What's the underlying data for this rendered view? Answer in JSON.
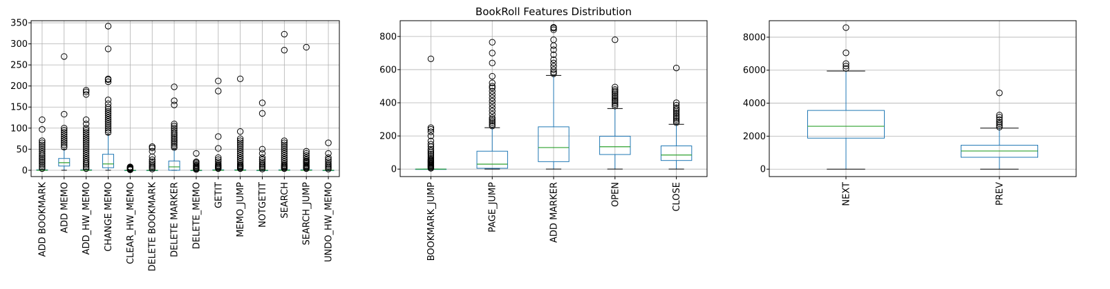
{
  "title": "BookRoll Features Distribution",
  "colors": {
    "box": "#1f77b4",
    "median": "#2ca02c",
    "outlier": "#000000",
    "grid": "#b0b0b0",
    "axes": "#000000"
  },
  "chart_data": [
    {
      "type": "box",
      "ylim": [
        -15,
        355
      ],
      "yticks": [
        0,
        50,
        100,
        150,
        200,
        250,
        300,
        350
      ],
      "grid": true,
      "categories": [
        "ADD BOOKMARK",
        "ADD MEMO",
        "ADD_HW_MEMO",
        "CHANGE MEMO",
        "CLEAR_HW_MEMO",
        "DELETE BOOKMARK",
        "DELETE MARKER",
        "DELETE_MEMO",
        "GETIT",
        "MEMO_JUMP",
        "NOTGETIT",
        "SEARCH",
        "SEARCH_JUMP",
        "UNDO_HW_MEMO"
      ],
      "boxes": [
        {
          "whislo": 0,
          "q1": 0,
          "med": 0,
          "q3": 1,
          "whishi": 2,
          "fliers": [
            4,
            8,
            12,
            16,
            20,
            24,
            28,
            32,
            36,
            40,
            45,
            50,
            55,
            60,
            65,
            70,
            97,
            120
          ]
        },
        {
          "whislo": 0,
          "q1": 10,
          "med": 18,
          "q3": 28,
          "whishi": 50,
          "fliers": [
            55,
            60,
            65,
            70,
            75,
            80,
            85,
            90,
            95,
            100,
            133,
            270
          ]
        },
        {
          "whislo": 0,
          "q1": 0,
          "med": 0,
          "q3": 1,
          "whishi": 2,
          "fliers": [
            4,
            8,
            12,
            16,
            20,
            25,
            30,
            35,
            40,
            45,
            50,
            55,
            60,
            65,
            70,
            75,
            80,
            85,
            90,
            95,
            100,
            110,
            120,
            180,
            186,
            190
          ]
        },
        {
          "whislo": 0,
          "q1": 6,
          "med": 15,
          "q3": 38,
          "whishi": 85,
          "fliers": [
            90,
            95,
            100,
            105,
            110,
            115,
            120,
            125,
            130,
            135,
            140,
            145,
            150,
            158,
            167,
            210,
            215,
            217,
            288,
            342
          ]
        },
        {
          "whislo": 0,
          "q1": 0,
          "med": 0,
          "q3": 0,
          "whishi": 0,
          "fliers": [
            1,
            2,
            3,
            4,
            5,
            6,
            7,
            8
          ]
        },
        {
          "whislo": 0,
          "q1": 0,
          "med": 0,
          "q3": 0,
          "whishi": 1,
          "fliers": [
            3,
            6,
            9,
            12,
            16,
            20,
            25,
            32,
            45,
            53,
            56
          ]
        },
        {
          "whislo": 0,
          "q1": 0,
          "med": 8,
          "q3": 22,
          "whishi": 50,
          "fliers": [
            54,
            58,
            62,
            66,
            70,
            74,
            78,
            82,
            86,
            90,
            95,
            100,
            105,
            110,
            155,
            165,
            198
          ]
        },
        {
          "whislo": 0,
          "q1": 0,
          "med": 0,
          "q3": 0,
          "whishi": 1,
          "fliers": [
            2,
            4,
            6,
            8,
            10,
            12,
            15,
            18,
            20,
            40
          ]
        },
        {
          "whislo": 0,
          "q1": 0,
          "med": 0,
          "q3": 1,
          "whishi": 2,
          "fliers": [
            4,
            6,
            8,
            10,
            12,
            15,
            20,
            25,
            30,
            52,
            80,
            188,
            212
          ]
        },
        {
          "whislo": 0,
          "q1": 0,
          "med": 0,
          "q3": 1,
          "whishi": 2,
          "fliers": [
            4,
            6,
            8,
            10,
            12,
            15,
            20,
            25,
            30,
            35,
            40,
            45,
            50,
            55,
            60,
            65,
            70,
            75,
            92,
            217
          ]
        },
        {
          "whislo": 0,
          "q1": 0,
          "med": 0,
          "q3": 0,
          "whishi": 1,
          "fliers": [
            3,
            6,
            9,
            12,
            15,
            20,
            25,
            30,
            40,
            50,
            135,
            160
          ]
        },
        {
          "whislo": 0,
          "q1": 0,
          "med": 0,
          "q3": 1,
          "whishi": 2,
          "fliers": [
            4,
            6,
            8,
            10,
            12,
            15,
            20,
            25,
            30,
            35,
            40,
            45,
            50,
            55,
            60,
            65,
            70,
            285,
            323
          ]
        },
        {
          "whislo": 0,
          "q1": 0,
          "med": 0,
          "q3": 1,
          "whishi": 2,
          "fliers": [
            4,
            6,
            8,
            10,
            12,
            15,
            18,
            20,
            22,
            25,
            30,
            35,
            40,
            45,
            292
          ]
        },
        {
          "whislo": 0,
          "q1": 0,
          "med": 0,
          "q3": 0,
          "whishi": 1,
          "fliers": [
            3,
            6,
            9,
            12,
            15,
            20,
            25,
            30,
            40,
            65
          ]
        }
      ]
    },
    {
      "type": "box",
      "ylim": [
        -45,
        895
      ],
      "yticks": [
        0,
        200,
        400,
        600,
        800
      ],
      "grid": true,
      "categories": [
        "BOOKMARK_JUMP",
        "PAGE_JUMP",
        "ADD MARKER",
        "OPEN",
        "CLOSE"
      ],
      "boxes": [
        {
          "whislo": 0,
          "q1": 0,
          "med": 0,
          "q3": 0,
          "whishi": 0,
          "fliers": [
            5,
            10,
            15,
            20,
            25,
            30,
            35,
            40,
            45,
            50,
            55,
            60,
            70,
            80,
            90,
            100,
            110,
            120,
            135,
            150,
            170,
            200,
            225,
            240,
            250,
            665
          ]
        },
        {
          "whislo": 0,
          "q1": 5,
          "med": 30,
          "q3": 108,
          "whishi": 250,
          "fliers": [
            260,
            270,
            280,
            290,
            300,
            310,
            330,
            350,
            370,
            390,
            410,
            430,
            450,
            470,
            490,
            500,
            520,
            560,
            640,
            700,
            765
          ]
        },
        {
          "whislo": 0,
          "q1": 45,
          "med": 130,
          "q3": 255,
          "whishi": 565,
          "fliers": [
            575,
            585,
            600,
            620,
            640,
            660,
            690,
            720,
            745,
            780,
            840,
            850,
            855
          ]
        },
        {
          "whislo": 0,
          "q1": 88,
          "med": 135,
          "q3": 198,
          "whishi": 365,
          "fliers": [
            380,
            390,
            400,
            410,
            420,
            430,
            440,
            450,
            460,
            470,
            480,
            495,
            780
          ]
        },
        {
          "whislo": 0,
          "q1": 52,
          "med": 85,
          "q3": 140,
          "whishi": 270,
          "fliers": [
            280,
            290,
            300,
            310,
            320,
            330,
            340,
            350,
            360,
            370,
            385,
            400,
            610
          ]
        }
      ]
    },
    {
      "type": "box",
      "ylim": [
        -450,
        9000
      ],
      "yticks": [
        0,
        2000,
        4000,
        6000,
        8000
      ],
      "grid": true,
      "categories": [
        "NEXT",
        "PREV"
      ],
      "boxes": [
        {
          "whislo": 0,
          "q1": 1880,
          "med": 2600,
          "q3": 3560,
          "whishi": 5950,
          "fliers": [
            6100,
            6250,
            6400,
            7050,
            8580
          ]
        },
        {
          "whislo": 0,
          "q1": 720,
          "med": 1100,
          "q3": 1450,
          "whishi": 2490,
          "fliers": [
            2550,
            2650,
            2750,
            2850,
            3000,
            3150,
            3280,
            4620
          ]
        }
      ]
    }
  ]
}
